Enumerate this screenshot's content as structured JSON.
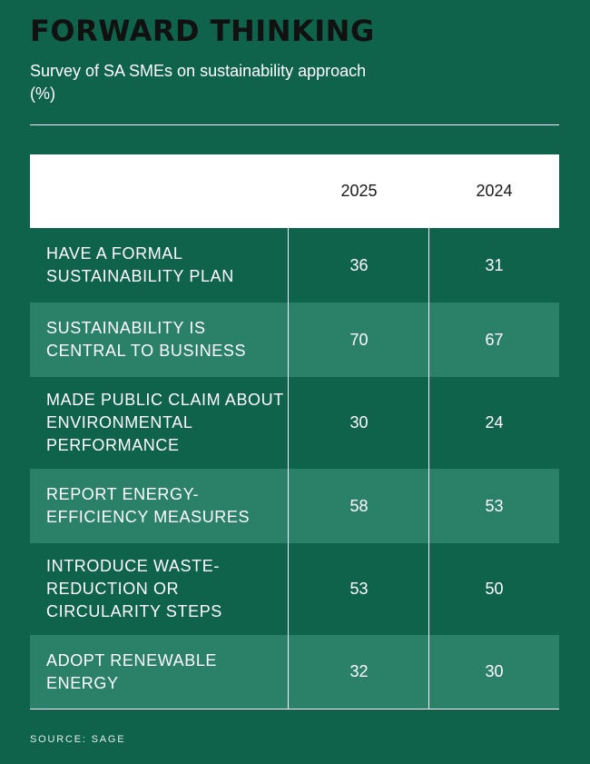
{
  "chart_data": {
    "type": "table",
    "title": "FORWARD THINKING",
    "subtitle": "Survey of SA SMEs on sustainability approach (%)",
    "columns": [
      "2025",
      "2024"
    ],
    "rows": [
      {
        "label": "HAVE A FORMAL SUSTAINABILITY PLAN",
        "values": [
          "36",
          "31"
        ]
      },
      {
        "label": "SUSTAINABILITY IS CENTRAL TO BUSINESS",
        "values": [
          "70",
          "67"
        ]
      },
      {
        "label": "MADE PUBLIC CLAIM ABOUT ENVIRONMENTAL PERFORMANCE",
        "values": [
          "30",
          "24"
        ]
      },
      {
        "label": "REPORT ENERGY-EFFICIENCY MEASURES",
        "values": [
          "58",
          "53"
        ]
      },
      {
        "label": "INTRODUCE WASTE-REDUCTION OR CIRCULARITY STEPS",
        "values": [
          "53",
          "50"
        ]
      },
      {
        "label": "ADOPT RENEWABLE ENERGY",
        "values": [
          "32",
          "30"
        ]
      }
    ],
    "source": "SOURCE: SAGE"
  },
  "colors": {
    "background": "#0f634a",
    "shaded_row": "#2a8168",
    "title": "#111111"
  }
}
